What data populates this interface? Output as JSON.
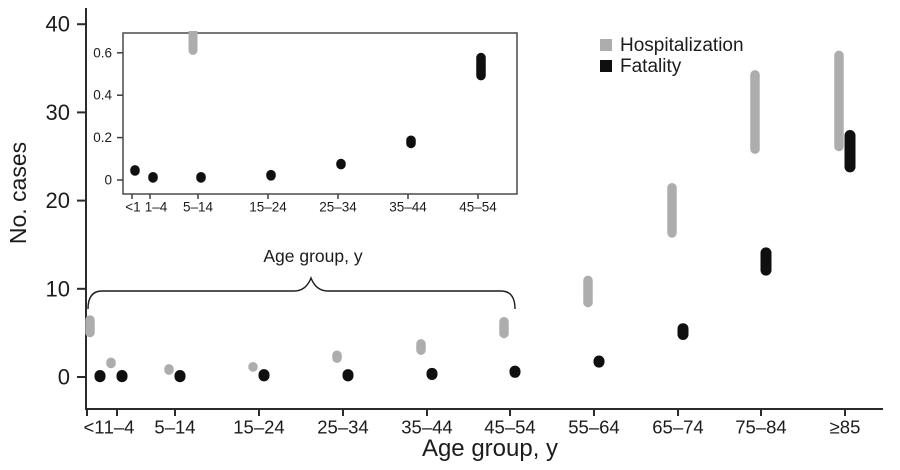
{
  "figure": {
    "background": "#ffffff",
    "text_color": "#1c1c1c"
  },
  "legend": {
    "position": "top-right",
    "items": [
      {
        "label": "Hospitalization",
        "color": "#adadad"
      },
      {
        "label": "Fatality",
        "color": "#0f0f0f"
      }
    ]
  },
  "chart_data": [
    {
      "id": "main",
      "type": "bar",
      "subtype": "vertical-interval-range-dot",
      "title": "",
      "xlabel": "Age group, y",
      "ylabel": "No. cases",
      "ylim": [
        0,
        40
      ],
      "yticks": [
        0,
        10,
        20,
        30,
        40
      ],
      "grid": false,
      "categories": [
        "<1",
        "1–4",
        "5–14",
        "15–24",
        "25–34",
        "35–44",
        "45–54",
        "55–64",
        "65–74",
        "75–84",
        "≥85"
      ],
      "series": [
        {
          "name": "Hospitalization",
          "color": "#adadad",
          "ranges": [
            [
              4.5,
              7.0
            ],
            [
              1.2,
              2.0
            ],
            [
              0.5,
              1.2
            ],
            [
              0.6,
              1.7
            ],
            [
              1.6,
              3.0
            ],
            [
              2.5,
              4.3
            ],
            [
              4.4,
              6.8
            ],
            [
              7.9,
              11.5
            ],
            [
              15.8,
              22.0
            ],
            [
              25.3,
              34.8
            ],
            [
              25.6,
              37.0
            ]
          ]
        },
        {
          "name": "Fatality",
          "color": "#0f0f0f",
          "ranges": [
            [
              0,
              0.2
            ],
            [
              0,
              0.2
            ],
            [
              0,
              0.2
            ],
            [
              0.1,
              0.3
            ],
            [
              0.1,
              0.3
            ],
            [
              0.2,
              0.5
            ],
            [
              0.4,
              0.8
            ],
            [
              1.4,
              2.1
            ],
            [
              4.2,
              6.1
            ],
            [
              11.5,
              14.7
            ],
            [
              23.2,
              28.0
            ]
          ]
        }
      ]
    },
    {
      "id": "inset",
      "type": "bar",
      "subtype": "vertical-interval-range-dot",
      "title": "",
      "xlabel": "Age group, y",
      "ylabel": "",
      "ylim": [
        0,
        0.7
      ],
      "yticks": [
        0,
        0.2,
        0.4,
        0.6
      ],
      "grid": false,
      "categories": [
        "<1",
        "1–4",
        "5–14",
        "15–24",
        "25–34",
        "35–44",
        "45–54"
      ],
      "series": [
        {
          "name": "Hospitalization",
          "color": "#adadad",
          "ranges": [
            null,
            null,
            [
              0.59,
              0.73
            ],
            null,
            null,
            null,
            null
          ]
        },
        {
          "name": "Fatality",
          "color": "#0f0f0f",
          "ranges": [
            [
              0.03,
              0.06
            ],
            [
              0.005,
              0.02
            ],
            [
              0.005,
              0.02
            ],
            [
              0.01,
              0.035
            ],
            [
              0.05,
              0.1
            ],
            [
              0.15,
              0.21
            ],
            [
              0.47,
              0.6
            ]
          ]
        }
      ]
    }
  ]
}
